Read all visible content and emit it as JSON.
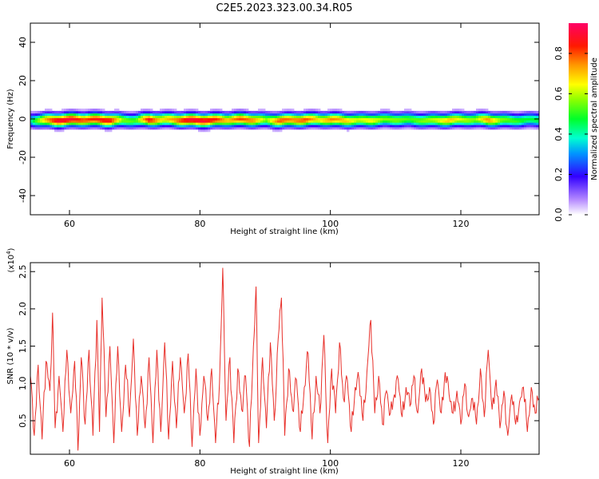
{
  "title": "C2E5.2023.323.00.34.R05",
  "chart_data": [
    {
      "type": "heatmap",
      "xlabel": "Height of straight line (km)",
      "ylabel": "Frequency (Hz)",
      "xlim": [
        54,
        132
      ],
      "ylim": [
        -50,
        50
      ],
      "xticks": [
        60,
        80,
        100,
        120
      ],
      "yticks": [
        -40,
        -20,
        0,
        20,
        40
      ],
      "colorbar": {
        "label": "Normalized spectral amplitude",
        "range": [
          0,
          0.95
        ],
        "ticks": [
          0.0,
          0.2,
          0.4,
          0.6,
          0.8
        ]
      },
      "band": {
        "center_hz": -1,
        "halfwidth_core_hz": 3,
        "halfwidth_outer_hz": 8,
        "profile": [
          {
            "x": 54,
            "peak": 0.45
          },
          {
            "x": 56,
            "peak": 0.75
          },
          {
            "x": 58,
            "peak": 0.95
          },
          {
            "x": 60,
            "peak": 0.95
          },
          {
            "x": 62,
            "peak": 0.85
          },
          {
            "x": 64,
            "peak": 0.9
          },
          {
            "x": 66,
            "peak": 0.92
          },
          {
            "x": 68,
            "peak": 0.6
          },
          {
            "x": 70,
            "peak": 0.55
          },
          {
            "x": 72,
            "peak": 0.92
          },
          {
            "x": 74,
            "peak": 0.7
          },
          {
            "x": 76,
            "peak": 0.8
          },
          {
            "x": 78,
            "peak": 0.95
          },
          {
            "x": 80,
            "peak": 0.95
          },
          {
            "x": 82,
            "peak": 0.9
          },
          {
            "x": 84,
            "peak": 0.75
          },
          {
            "x": 86,
            "peak": 0.85
          },
          {
            "x": 88,
            "peak": 0.8
          },
          {
            "x": 90,
            "peak": 0.6
          },
          {
            "x": 92,
            "peak": 0.85
          },
          {
            "x": 94,
            "peak": 0.8
          },
          {
            "x": 96,
            "peak": 0.85
          },
          {
            "x": 98,
            "peak": 0.7
          },
          {
            "x": 100,
            "peak": 0.8
          },
          {
            "x": 102,
            "peak": 0.75
          },
          {
            "x": 104,
            "peak": 0.65
          },
          {
            "x": 106,
            "peak": 0.7
          },
          {
            "x": 108,
            "peak": 0.6
          },
          {
            "x": 110,
            "peak": 0.6
          },
          {
            "x": 112,
            "peak": 0.55
          },
          {
            "x": 114,
            "peak": 0.6
          },
          {
            "x": 116,
            "peak": 0.65
          },
          {
            "x": 118,
            "peak": 0.75
          },
          {
            "x": 120,
            "peak": 0.65
          },
          {
            "x": 122,
            "peak": 0.6
          },
          {
            "x": 124,
            "peak": 0.8
          },
          {
            "x": 126,
            "peak": 0.6
          },
          {
            "x": 128,
            "peak": 0.55
          },
          {
            "x": 130,
            "peak": 0.5
          },
          {
            "x": 132,
            "peak": 0.5
          }
        ]
      }
    },
    {
      "type": "line",
      "xlabel": "Height of straight line (km)",
      "ylabel": "SNR (10 * v/v)",
      "yunit_label": "(x10",
      "yunit_exp": "4",
      "yunit_close": ")",
      "xlim": [
        54,
        132
      ],
      "ylim": [
        0.05,
        2.62
      ],
      "xticks": [
        60,
        80,
        100,
        120
      ],
      "yticks": [
        0.5,
        1.0,
        1.5,
        2.0,
        2.5
      ],
      "color": "#e8302a",
      "series": [
        {
          "x": [
            54.0,
            54.6,
            55.2,
            55.8,
            56.4,
            57.0,
            57.4,
            57.8,
            58.4,
            59.0,
            59.6,
            60.2,
            60.8,
            61.3,
            61.8,
            62.4,
            63.0,
            63.6,
            64.2,
            64.6,
            65.0,
            65.6,
            66.2,
            66.8,
            67.4,
            68.0,
            68.6,
            69.2,
            69.8,
            70.4,
            71.0,
            71.6,
            72.2,
            72.8,
            73.4,
            74.0,
            74.6,
            75.2,
            75.8,
            76.4,
            77.0,
            77.6,
            78.2,
            78.8,
            79.4,
            80.0,
            80.6,
            81.2,
            81.8,
            82.4,
            83.0,
            83.5,
            84.0,
            84.6,
            85.2,
            85.8,
            86.4,
            87.0,
            87.6,
            88.2,
            88.6,
            89.0,
            89.6,
            90.2,
            90.8,
            91.4,
            92.0,
            92.5,
            93.0,
            93.6,
            94.2,
            94.8,
            95.4,
            96.0,
            96.6,
            97.2,
            97.8,
            98.4,
            99.0,
            99.6,
            100.2,
            100.8,
            101.4,
            102.0,
            102.6,
            103.2,
            103.8,
            104.4,
            105.0,
            105.6,
            106.2,
            106.8,
            107.4,
            108.0,
            108.6,
            109.2,
            109.8,
            110.4,
            111.0,
            111.6,
            112.2,
            112.8,
            113.4,
            114.0,
            114.6,
            115.2,
            115.8,
            116.4,
            117.0,
            117.6,
            118.2,
            118.8,
            119.4,
            120.0,
            120.6,
            121.2,
            121.8,
            122.4,
            123.0,
            123.6,
            124.2,
            124.8,
            125.4,
            126.0,
            126.6,
            127.2,
            127.8,
            128.4,
            129.0,
            129.6,
            130.2,
            130.8,
            131.4,
            132.0
          ],
          "values": [
            1.1,
            0.3,
            1.25,
            0.25,
            1.3,
            0.9,
            1.95,
            0.4,
            1.1,
            0.35,
            1.45,
            0.6,
            1.3,
            0.1,
            1.35,
            0.45,
            1.45,
            0.3,
            1.85,
            0.35,
            2.15,
            0.55,
            1.5,
            0.2,
            1.5,
            0.35,
            1.25,
            0.55,
            1.6,
            0.3,
            1.1,
            0.4,
            1.35,
            0.2,
            1.45,
            0.35,
            1.55,
            0.25,
            1.3,
            0.4,
            1.35,
            0.6,
            1.4,
            0.15,
            1.2,
            0.3,
            1.1,
            0.5,
            1.2,
            0.2,
            1.0,
            2.55,
            0.5,
            1.35,
            0.2,
            1.2,
            0.65,
            1.1,
            0.15,
            1.5,
            2.3,
            0.2,
            1.35,
            0.4,
            1.55,
            0.5,
            1.6,
            2.15,
            0.3,
            1.2,
            0.65,
            1.05,
            0.35,
            0.95,
            1.4,
            0.25,
            1.1,
            0.6,
            1.65,
            0.2,
            1.2,
            0.6,
            1.55,
            0.8,
            1.05,
            0.35,
            0.95,
            1.05,
            0.5,
            1.15,
            1.85,
            0.6,
            1.1,
            0.45,
            0.9,
            0.6,
            0.85,
            1.05,
            0.55,
            0.95,
            0.7,
            1.1,
            0.6,
            1.2,
            0.75,
            0.95,
            0.45,
            1.05,
            0.6,
            1.15,
            0.85,
            0.6,
            0.9,
            0.45,
            1.0,
            0.55,
            0.8,
            0.45,
            1.2,
            0.55,
            1.45,
            0.65,
            1.05,
            0.4,
            0.9,
            0.3,
            0.85,
            0.45,
            0.75,
            0.95,
            0.35,
            0.95,
            0.6,
            0.8
          ]
        }
      ]
    }
  ]
}
